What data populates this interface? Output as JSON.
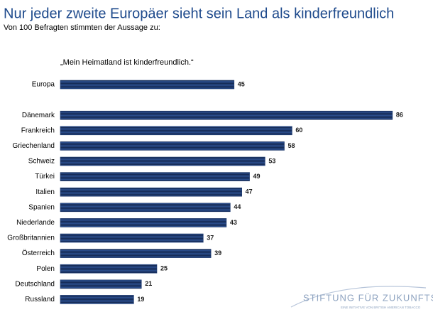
{
  "chart_data": {
    "type": "bar",
    "orientation": "horizontal",
    "title": "Nur jeder zweite Europäer sieht sein Land als kinderfreundlich",
    "subtitle": "Von 100 Befragten stimmten der Aussage zu:",
    "annotation": "„Mein Heimatland ist kinderfreundlich.“",
    "categories": [
      "Europa",
      null,
      "Dänemark",
      "Frankreich",
      "Griechenland",
      "Schweiz",
      "Türkei",
      "Italien",
      "Spanien",
      "Niederlande",
      "Großbritannien",
      "Österreich",
      "Polen",
      "Deutschland",
      "Russland"
    ],
    "values": [
      45,
      null,
      86,
      60,
      58,
      53,
      49,
      47,
      44,
      43,
      37,
      39,
      25,
      21,
      19
    ],
    "color": "#1f3a6e",
    "logo": {
      "name": "STIFTUNG FÜR ZUKUNFTSFRAGEN",
      "tagline": "EINE INITIATIVE VON BRITISH AMERICAN TOBACCO"
    }
  }
}
